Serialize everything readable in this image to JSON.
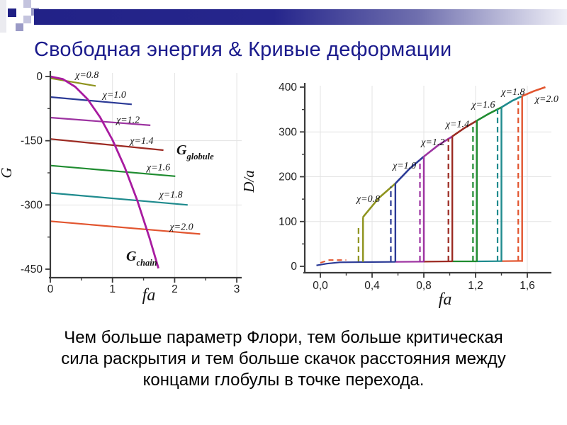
{
  "slide": {
    "title": "Свободная энергия & Кривые деформации",
    "title_color": "#1a1a8c",
    "body_lines": [
      "Чем больше параметр Флори, тем больше критическая",
      "сила раскрытия и тем больше скачок расстояния между",
      "концами глобулы в точке перехода."
    ]
  },
  "chart_data": [
    {
      "type": "line",
      "title": "",
      "xlabel": "fa",
      "ylabel": "G",
      "xlim": [
        0,
        3.1
      ],
      "ylim": [
        -470,
        10
      ],
      "grid": "major-light",
      "legend_position": "inline-labels",
      "xticks": [
        {
          "v": 0,
          "label": "0"
        },
        {
          "v": 1,
          "label": "1"
        },
        {
          "v": 2,
          "label": "2"
        },
        {
          "v": 3,
          "label": "3"
        }
      ],
      "xminor": [
        0.5,
        1.5,
        2.5
      ],
      "yticks": [
        {
          "v": 0,
          "label": "0"
        },
        {
          "v": -150,
          "label": "-150"
        },
        {
          "v": -300,
          "label": "-300"
        },
        {
          "v": -450,
          "label": "-450"
        }
      ],
      "yminor": [
        -75,
        -225,
        -375
      ],
      "grid_x": [
        1,
        2,
        3
      ],
      "grid_y": [
        -150,
        -300
      ],
      "globule_series": [
        {
          "name": "χ=0.8",
          "color": "#8f941f",
          "points": [
            [
              0,
              -4
            ],
            [
              0.73,
              -22
            ]
          ],
          "label_xy": [
            0.59,
            -3
          ]
        },
        {
          "name": "χ=1.0",
          "color": "#2b3a96",
          "points": [
            [
              0,
              -48
            ],
            [
              1.31,
              -65
            ]
          ],
          "label_xy": [
            1.03,
            -50
          ]
        },
        {
          "name": "χ=1.2",
          "color": "#9d33a1",
          "points": [
            [
              0,
              -96
            ],
            [
              1.61,
              -114
            ]
          ],
          "label_xy": [
            1.25,
            -108
          ]
        },
        {
          "name": "χ=1.4",
          "color": "#9c2a22",
          "points": [
            [
              0,
              -146
            ],
            [
              1.82,
              -172
            ]
          ],
          "label_xy": [
            1.47,
            -157
          ]
        },
        {
          "name": "χ=1.6",
          "color": "#1f8c30",
          "points": [
            [
              0,
              -208
            ],
            [
              2.01,
              -233
            ]
          ],
          "label_xy": [
            1.74,
            -219
          ]
        },
        {
          "name": "χ=1.8",
          "color": "#1f8b8e",
          "points": [
            [
              0,
              -272
            ],
            [
              2.21,
              -300
            ]
          ],
          "label_xy": [
            1.94,
            -283
          ]
        },
        {
          "name": "χ=2.0",
          "color": "#e2552f",
          "points": [
            [
              0,
              -338
            ],
            [
              2.41,
              -368
            ]
          ],
          "label_xy": [
            2.11,
            -358
          ]
        }
      ],
      "chain_series": {
        "color": "#a81ba0",
        "points": [
          [
            0,
            0
          ],
          [
            0.2,
            -6
          ],
          [
            0.4,
            -24
          ],
          [
            0.6,
            -53
          ],
          [
            0.8,
            -95
          ],
          [
            1.0,
            -148
          ],
          [
            1.2,
            -213
          ],
          [
            1.4,
            -290
          ],
          [
            1.6,
            -379
          ],
          [
            1.74,
            -448
          ]
        ]
      },
      "annotations": [
        {
          "main": "G",
          "sub": "globule",
          "xy": [
            2.03,
            -182
          ]
        },
        {
          "main": "G",
          "sub": "chain",
          "xy": [
            1.22,
            -430
          ]
        }
      ]
    },
    {
      "type": "line",
      "title": "",
      "xlabel": "fa",
      "ylabel": "D/a",
      "xlim": [
        -0.12,
        1.79
      ],
      "ylim": [
        -14,
        408
      ],
      "grid": "major-light",
      "legend_position": "inline-labels",
      "xticks": [
        {
          "v": 0,
          "label": "0,0"
        },
        {
          "v": 0.4,
          "label": "0,4"
        },
        {
          "v": 0.8,
          "label": "0,8"
        },
        {
          "v": 1.2,
          "label": "1,2"
        },
        {
          "v": 1.6,
          "label": "1,6"
        }
      ],
      "xminor": [
        0.2,
        0.6,
        1.0,
        1.4
      ],
      "yticks": [
        {
          "v": 0,
          "label": "0"
        },
        {
          "v": 100,
          "label": "100"
        },
        {
          "v": 200,
          "label": "200"
        },
        {
          "v": 300,
          "label": "300"
        },
        {
          "v": 400,
          "label": "400"
        }
      ],
      "yminor": [
        50,
        150,
        250,
        350
      ],
      "grid_x": [
        0,
        0.4,
        0.8,
        1.2,
        1.6
      ],
      "grid_y": [
        100,
        200,
        300
      ],
      "series": [
        {
          "name": "χ=0.8",
          "color": "#8f941f",
          "jump_x": 0.33,
          "jump_top": 110,
          "dash_x": 0.295,
          "dash_top": 92,
          "env": [
            [
              0.33,
              110
            ],
            [
              0.45,
              152
            ],
            [
              0.58,
              185
            ]
          ],
          "label_xy": [
            0.37,
            144
          ]
        },
        {
          "name": "χ=1.0",
          "color": "#2b3a96",
          "jump_x": 0.58,
          "jump_top": 185,
          "dash_x": 0.545,
          "dash_top": 178,
          "env": [
            [
              0.58,
              185
            ],
            [
              0.69,
              218
            ],
            [
              0.8,
              245
            ]
          ],
          "label_xy": [
            0.65,
            218
          ]
        },
        {
          "name": "χ=1.2",
          "color": "#9d33a1",
          "jump_x": 0.8,
          "jump_top": 245,
          "dash_x": 0.77,
          "dash_top": 238,
          "env": [
            [
              0.8,
              245
            ],
            [
              0.91,
              270
            ],
            [
              1.02,
              290
            ]
          ],
          "label_xy": [
            0.87,
            270
          ]
        },
        {
          "name": "χ=1.4",
          "color": "#9c2a22",
          "jump_x": 1.02,
          "jump_top": 290,
          "dash_x": 0.99,
          "dash_top": 285,
          "env": [
            [
              1.02,
              290
            ],
            [
              1.115,
              309
            ],
            [
              1.21,
              325
            ]
          ],
          "label_xy": [
            1.06,
            311
          ]
        },
        {
          "name": "χ=1.6",
          "color": "#1f8c30",
          "jump_x": 1.21,
          "jump_top": 325,
          "dash_x": 1.18,
          "dash_top": 320,
          "env": [
            [
              1.21,
              325
            ],
            [
              1.305,
              341
            ],
            [
              1.4,
              355
            ]
          ],
          "label_xy": [
            1.26,
            354
          ]
        },
        {
          "name": "χ=1.8",
          "color": "#1f8b8e",
          "jump_x": 1.4,
          "jump_top": 355,
          "dash_x": 1.37,
          "dash_top": 351,
          "env": [
            [
              1.4,
              355
            ],
            [
              1.48,
              369
            ],
            [
              1.56,
              380
            ]
          ],
          "label_xy": [
            1.49,
            383
          ]
        },
        {
          "name": "χ=2.0",
          "color": "#e2552f",
          "jump_x": 1.56,
          "jump_top": 380,
          "dash_x": 1.53,
          "dash_top": 368,
          "env": [
            [
              1.56,
              380
            ],
            [
              1.65,
              391
            ],
            [
              1.74,
              400
            ]
          ],
          "label_xy": [
            1.75,
            367
          ]
        }
      ],
      "bottom_branch": {
        "segments": [
          {
            "color": "#2b3a96",
            "points": [
              [
                -0.03,
                2
              ],
              [
                0.05,
                6
              ],
              [
                0.15,
                9
              ],
              [
                0.58,
                10
              ]
            ]
          },
          {
            "color": "#9d33a1",
            "points": [
              [
                0.58,
                10
              ],
              [
                0.8,
                10.5
              ]
            ]
          },
          {
            "color": "#9c2a22",
            "points": [
              [
                0.8,
                10.5
              ],
              [
                1.02,
                11
              ]
            ]
          },
          {
            "color": "#1f8c30",
            "points": [
              [
                1.02,
                11
              ],
              [
                1.21,
                11
              ]
            ]
          },
          {
            "color": "#1f8b8e",
            "points": [
              [
                1.21,
                11
              ],
              [
                1.4,
                11.5
              ]
            ]
          },
          {
            "color": "#e2552f",
            "points": [
              [
                1.4,
                11.5
              ],
              [
                1.56,
                12
              ]
            ]
          }
        ],
        "start_dash": {
          "color": "#e2552f",
          "points": [
            [
              0.0,
              8
            ],
            [
              0.07,
              14
            ],
            [
              0.2,
              14
            ]
          ]
        }
      }
    }
  ]
}
